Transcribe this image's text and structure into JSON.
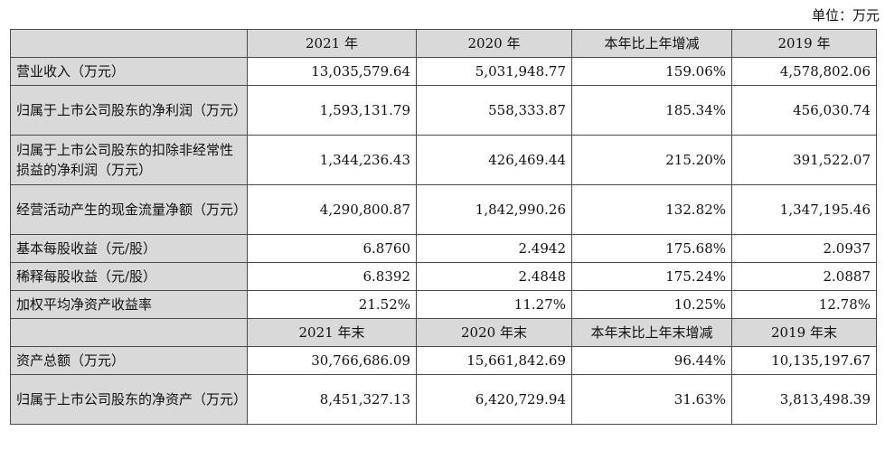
{
  "unit_label": "单位：万元",
  "header1": [
    "",
    "2021 年",
    "2020 年",
    "本年比上年增减",
    "2019 年"
  ],
  "rows1": [
    {
      "label": "营业收入（万元）",
      "values": [
        "13,035,579.64",
        "5,031,948.77",
        "159.06%",
        "4,578,802.06"
      ]
    },
    {
      "label": "归属于上市公司股东的净利润（万元）",
      "values": [
        "1,593,131.79",
        "558,333.87",
        "185.34%",
        "456,030.74"
      ]
    },
    {
      "label": "归属于上市公司股东的扣除非经常性损益的净利润（万元）",
      "values": [
        "1,344,236.43",
        "426,469.44",
        "215.20%",
        "391,522.07"
      ]
    },
    {
      "label": "经营活动产生的现金流量净额（万元）",
      "values": [
        "4,290,800.87",
        "1,842,990.26",
        "132.82%",
        "1,347,195.46"
      ]
    },
    {
      "label": "基本每股收益（元/股）",
      "values": [
        "6.8760",
        "2.4942",
        "175.68%",
        "2.0937"
      ]
    },
    {
      "label": "稀释每股收益（元/股）",
      "values": [
        "6.8392",
        "2.4848",
        "175.24%",
        "2.0887"
      ]
    },
    {
      "label": "加权平均净资产收益率",
      "values": [
        "21.52%",
        "11.27%",
        "10.25%",
        "12.78%"
      ]
    }
  ],
  "header2": [
    "",
    "2021 年末",
    "2020 年末",
    "本年末比上年末增减",
    "2019 年末"
  ],
  "rows2": [
    {
      "label": "资产总额（万元）",
      "values": [
        "30,766,686.09",
        "15,661,842.69",
        "96.44%",
        "10,135,197.67"
      ]
    },
    {
      "label": "归属于上市公司股东的净资产（万元）",
      "values": [
        "8,451,327.13",
        "6,420,729.94",
        "31.63%",
        "3,813,498.39"
      ]
    }
  ]
}
